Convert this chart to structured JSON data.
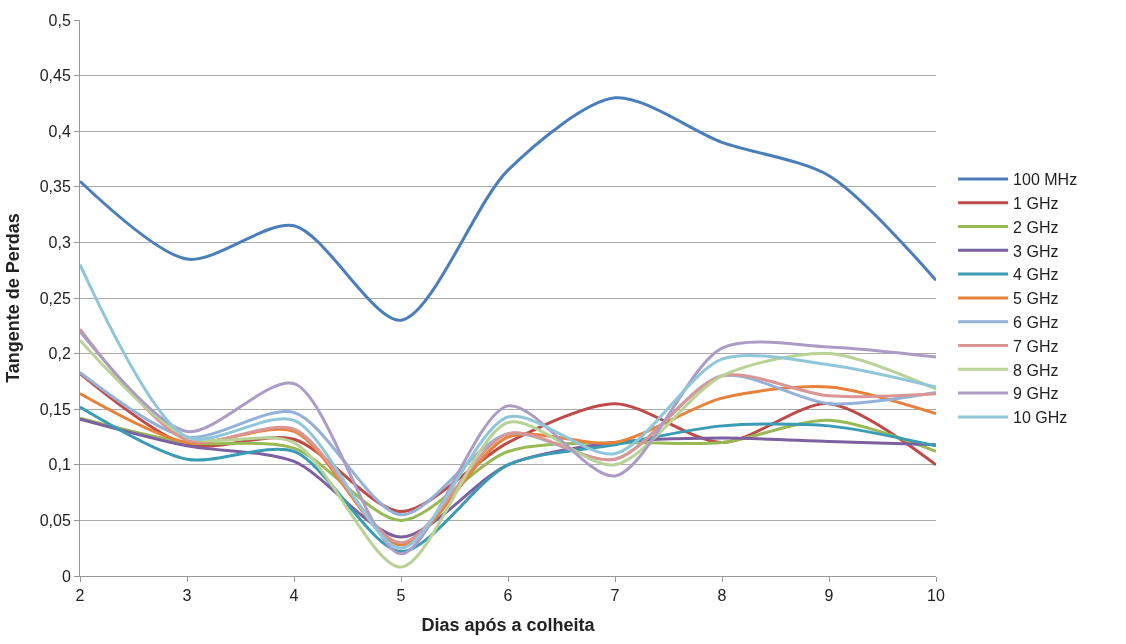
{
  "chart_data": {
    "type": "line",
    "xlabel": "Dias após a colheita",
    "ylabel": "Tangente de Perdas",
    "x": [
      2,
      3,
      4,
      5,
      6,
      7,
      8,
      9,
      10
    ],
    "xlim": [
      2,
      10
    ],
    "xticks": [
      2,
      3,
      4,
      5,
      6,
      7,
      8,
      9,
      10
    ],
    "ylim": [
      0,
      0.5
    ],
    "yticks": [
      {
        "value": 0,
        "label": "0"
      },
      {
        "value": 0.05,
        "label": "0,05"
      },
      {
        "value": 0.1,
        "label": "0,1"
      },
      {
        "value": 0.15,
        "label": "0,15"
      },
      {
        "value": 0.2,
        "label": "0,2"
      },
      {
        "value": 0.25,
        "label": "0,25"
      },
      {
        "value": 0.3,
        "label": "0,3"
      },
      {
        "value": 0.35,
        "label": "0,35"
      },
      {
        "value": 0.4,
        "label": "0,4"
      },
      {
        "value": 0.45,
        "label": "0,45"
      },
      {
        "value": 0.5,
        "label": "0,5"
      }
    ],
    "grid": "y",
    "legend": "right",
    "marker": "none",
    "line_style": "solid",
    "series": [
      {
        "name": "100 MHz",
        "color": "#4a7ebb",
        "values": [
          0.355,
          0.285,
          0.315,
          0.23,
          0.365,
          0.43,
          0.39,
          0.36,
          0.266
        ]
      },
      {
        "name": "1 GHz",
        "color": "#be4b48",
        "values": [
          0.182,
          0.118,
          0.123,
          0.058,
          0.12,
          0.155,
          0.12,
          0.155,
          0.1
        ]
      },
      {
        "name": "2 GHz",
        "color": "#98b954",
        "values": [
          0.142,
          0.12,
          0.115,
          0.05,
          0.112,
          0.12,
          0.12,
          0.14,
          0.112
        ]
      },
      {
        "name": "3 GHz",
        "color": "#7d60a0",
        "values": [
          0.141,
          0.117,
          0.103,
          0.035,
          0.1,
          0.12,
          0.124,
          0.121,
          0.118
        ]
      },
      {
        "name": "4 GHz",
        "color": "#3a9bb5",
        "values": [
          0.152,
          0.105,
          0.112,
          0.022,
          0.1,
          0.118,
          0.135,
          0.135,
          0.117
        ]
      },
      {
        "name": "5 GHz",
        "color": "#e8823a",
        "values": [
          0.164,
          0.12,
          0.13,
          0.028,
          0.125,
          0.12,
          0.16,
          0.17,
          0.146
        ]
      },
      {
        "name": "6 GHz",
        "color": "#94b1d8",
        "values": [
          0.183,
          0.125,
          0.147,
          0.055,
          0.128,
          0.105,
          0.18,
          0.155,
          0.165
        ]
      },
      {
        "name": "7 GHz",
        "color": "#d99694",
        "values": [
          0.222,
          0.122,
          0.132,
          0.03,
          0.128,
          0.105,
          0.18,
          0.162,
          0.164
        ]
      },
      {
        "name": "8 GHz",
        "color": "#b9d296",
        "values": [
          0.212,
          0.125,
          0.12,
          0.008,
          0.138,
          0.1,
          0.18,
          0.2,
          0.168
        ]
      },
      {
        "name": "9 GHz",
        "color": "#ab9cc6",
        "values": [
          0.22,
          0.13,
          0.173,
          0.02,
          0.153,
          0.09,
          0.205,
          0.206,
          0.197
        ]
      },
      {
        "name": "10 GHz",
        "color": "#8fc6da",
        "values": [
          0.28,
          0.125,
          0.14,
          0.025,
          0.143,
          0.11,
          0.195,
          0.19,
          0.17
        ]
      }
    ]
  }
}
